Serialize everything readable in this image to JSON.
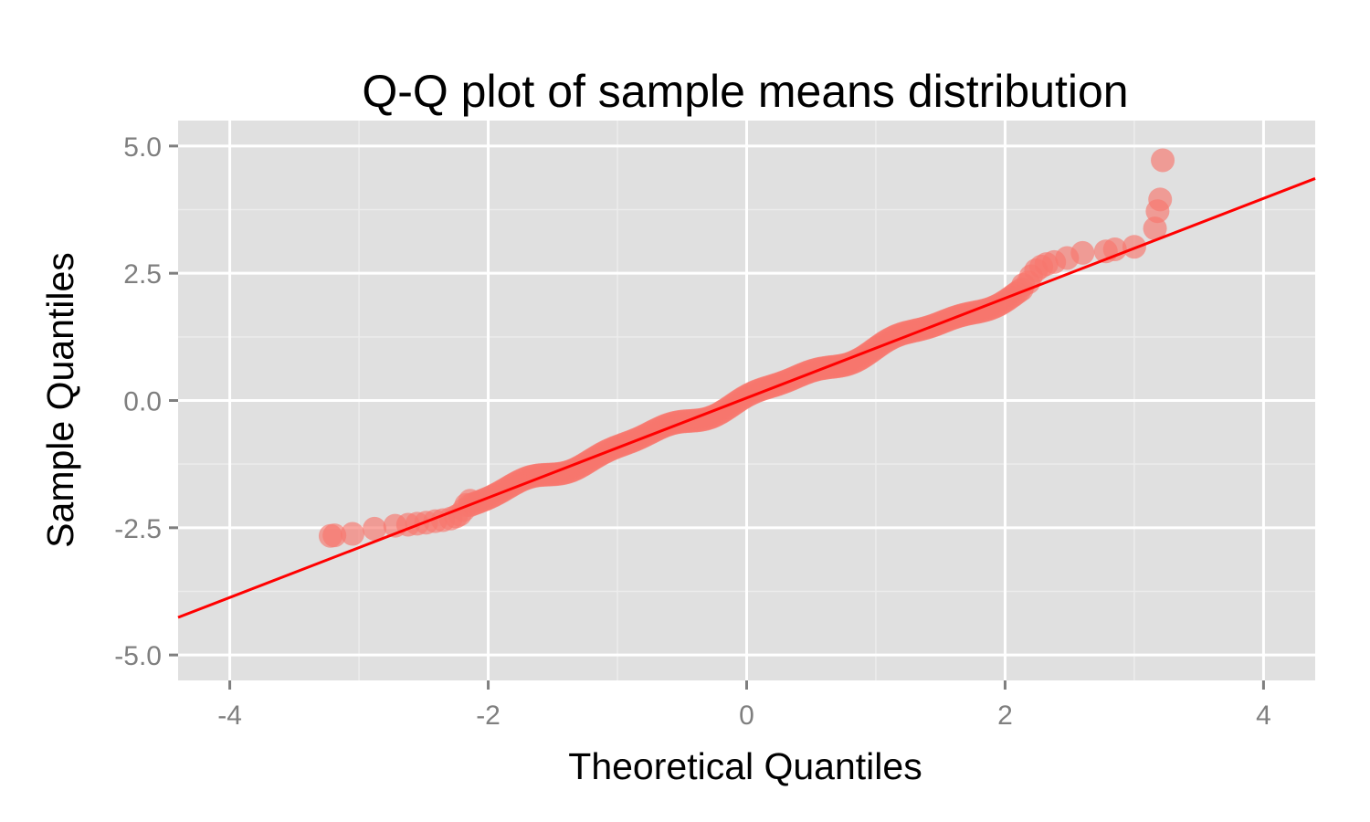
{
  "chart_data": {
    "type": "scatter",
    "title": "Q-Q plot of sample means distribution",
    "xlabel": "Theoretical Quantiles",
    "ylabel": "Sample Quantiles",
    "xlim": [
      -4.4,
      4.4
    ],
    "ylim": [
      -5.5,
      5.5
    ],
    "x_ticks": [
      -4,
      -2,
      0,
      2,
      4
    ],
    "x_tick_labels": [
      "-4",
      "-2",
      "0",
      "2",
      "4"
    ],
    "y_ticks": [
      -5,
      -2.5,
      0,
      2.5,
      5
    ],
    "y_tick_labels": [
      "-5.0",
      "-2.5",
      "0.0",
      "2.5",
      "5.0"
    ],
    "grid": true,
    "colors": {
      "panel_background": "#e0e0e0",
      "grid_major": "#ffffff",
      "grid_minor": "#ececec",
      "points": "#f8766d",
      "reference_line": "#ff0000"
    },
    "reference_line": {
      "intercept": 0.05,
      "slope": 0.98
    },
    "series": [
      {
        "points": [
          [
            -3.22,
            -2.66
          ],
          [
            -3.05,
            -2.62
          ],
          [
            -2.88,
            -2.52
          ],
          [
            -2.72,
            -2.46
          ],
          [
            -2.62,
            -2.44
          ],
          [
            -2.55,
            -2.42
          ],
          [
            -2.48,
            -2.4
          ],
          [
            -2.41,
            -2.37
          ],
          [
            -2.35,
            -2.35
          ],
          [
            -2.29,
            -2.32
          ],
          [
            -2.25,
            -2.28
          ],
          [
            -2.22,
            -2.24
          ],
          [
            -2.19,
            -2.15
          ],
          [
            -2.17,
            -2.05
          ],
          [
            -2.14,
            -1.97
          ],
          [
            -3.19,
            -2.65
          ],
          [
            3.22,
            4.72
          ],
          [
            3.2,
            3.95
          ],
          [
            3.18,
            3.72
          ],
          [
            3.16,
            3.38
          ],
          [
            3.0,
            3.02
          ],
          [
            2.85,
            2.97
          ],
          [
            2.78,
            2.93
          ],
          [
            2.6,
            2.9
          ],
          [
            2.48,
            2.8
          ],
          [
            2.38,
            2.72
          ],
          [
            2.32,
            2.68
          ],
          [
            2.28,
            2.63
          ],
          [
            2.24,
            2.56
          ],
          [
            2.2,
            2.44
          ],
          [
            2.18,
            2.32
          ],
          [
            2.14,
            2.27
          ]
        ]
      }
    ]
  }
}
